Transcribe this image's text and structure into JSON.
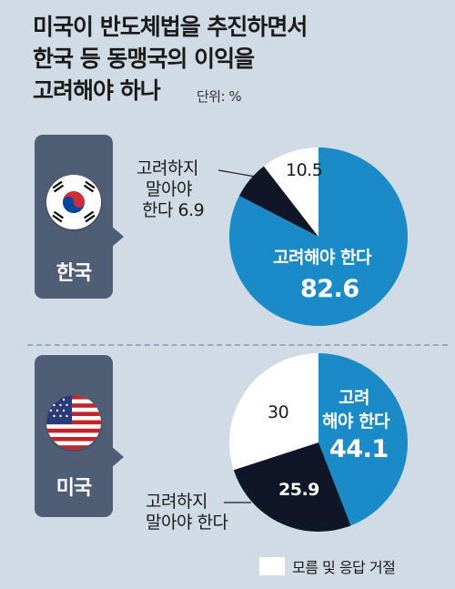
{
  "title_lines": [
    "미국이 반도체법을 추진하면서",
    "한국 등 동맹국의 이익을",
    "고려해야 하나"
  ],
  "unit": "단위: %",
  "colors": {
    "should_consider": "#1b8bc8",
    "should_not": "#0e1628",
    "unknown": "#ffffff",
    "card": "#4f5e75",
    "background": "#d1dbe6"
  },
  "chart_data": [
    {
      "type": "pie",
      "country": "한국",
      "flag_icon": "korea-flag-icon",
      "labels": [
        "고려해야 한다",
        "고려하지 말아야 한다",
        "모름 및 응답 거절"
      ],
      "values": [
        82.6,
        6.9,
        10.5
      ],
      "label_texts": {
        "consider_line1": "고려해야 한다",
        "consider_value": "82.6",
        "not_lines": [
          "고려하지",
          "말아야",
          "한다 6.9"
        ],
        "unknown_value": "10.5"
      }
    },
    {
      "type": "pie",
      "country": "미국",
      "flag_icon": "usa-flag-icon",
      "labels": [
        "고려해야 한다",
        "고려하지 말아야 한다",
        "모름 및 응답 거절"
      ],
      "values": [
        44.1,
        25.9,
        30
      ],
      "label_texts": {
        "consider_lines": [
          "고려",
          "해야 한다"
        ],
        "consider_value": "44.1",
        "not_lines": [
          "고려하지",
          "말아야 한다"
        ],
        "not_value": "25.9",
        "unknown_value": "30"
      }
    }
  ],
  "legend": {
    "label": "모름 및 응답 거절"
  }
}
